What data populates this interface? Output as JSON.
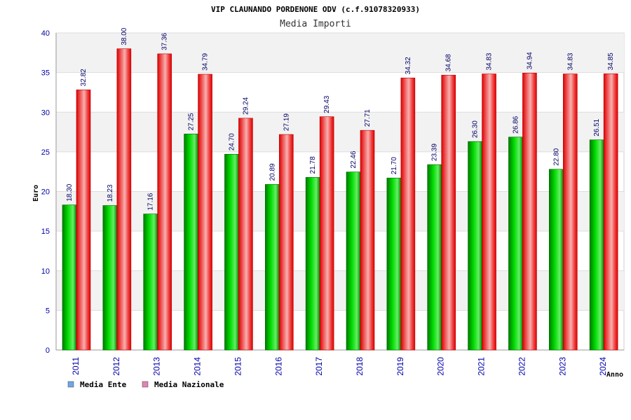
{
  "chart_data": {
    "type": "bar",
    "title": "VIP CLAUNANDO PORDENONE ODV (c.f.91078320933)",
    "subtitle": "Media Importi",
    "xlabel": "Anno",
    "ylabel": "Euro",
    "ylim": [
      0,
      40
    ],
    "yticks": [
      0,
      5,
      10,
      15,
      20,
      25,
      30,
      35,
      40
    ],
    "categories": [
      "2011",
      "2012",
      "2013",
      "2014",
      "2015",
      "2016",
      "2017",
      "2018",
      "2019",
      "2020",
      "2021",
      "2022",
      "2023",
      "2024"
    ],
    "series": [
      {
        "name": "Media Ente",
        "color": "#00bb00",
        "legend_color": "#6ea6ea",
        "values": [
          18.3,
          18.23,
          17.16,
          27.25,
          24.7,
          20.89,
          21.78,
          22.46,
          21.7,
          23.39,
          26.3,
          26.86,
          22.8,
          26.51
        ],
        "labels": [
          "18.30",
          "18.23",
          "17.16",
          "27.25",
          "24.70",
          "20.89",
          "21.78",
          "22.46",
          "21.70",
          "23.39",
          "26.30",
          "26.86",
          "22.80",
          "26.51"
        ]
      },
      {
        "name": "Media Nazionale",
        "color": "#ee1111",
        "legend_color": "#e184b4",
        "values": [
          32.82,
          38.0,
          37.36,
          34.79,
          29.24,
          27.19,
          29.43,
          27.71,
          34.32,
          34.68,
          34.83,
          34.94,
          34.83,
          34.85
        ],
        "labels": [
          "32.82",
          "38.00",
          "37.36",
          "34.79",
          "29.24",
          "27.19",
          "29.43",
          "27.71",
          "34.32",
          "34.68",
          "34.83",
          "34.94",
          "34.83",
          "34.85"
        ]
      }
    ],
    "grid": true,
    "legend": "bottom-left"
  }
}
